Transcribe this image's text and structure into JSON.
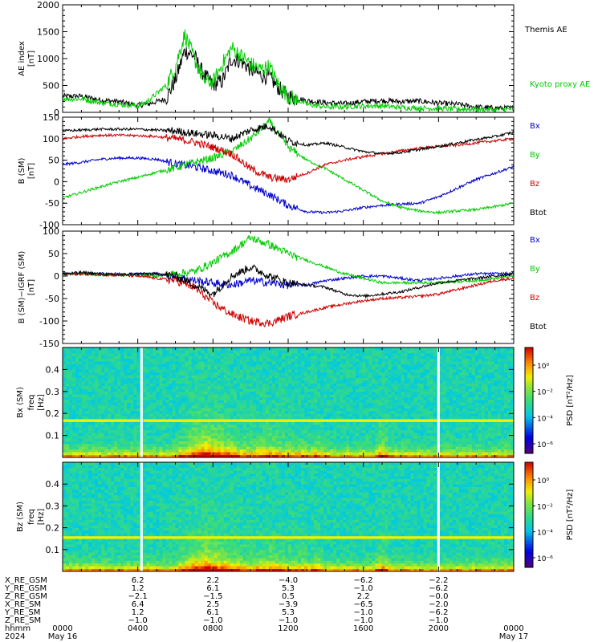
{
  "chart_data": [
    {
      "type": "line",
      "panel": "ae",
      "ylabel": "AE index",
      "yunit": "[nT]",
      "ylim": [
        0,
        2000
      ],
      "yticks": [
        0,
        500,
        1000,
        1500,
        2000
      ],
      "xlim_hours": [
        0,
        24
      ],
      "series": [
        {
          "name": "Themis AE",
          "color": "#000000",
          "x": [
            0,
            1,
            2,
            3,
            4,
            4.5,
            5,
            5.5,
            6,
            6.5,
            7,
            7.5,
            8,
            8.5,
            9,
            9.5,
            10,
            10.5,
            11,
            11.5,
            12,
            13,
            14,
            15,
            16,
            17,
            18,
            19,
            20,
            21,
            22,
            23,
            24
          ],
          "y": [
            300,
            300,
            230,
            200,
            130,
            150,
            200,
            250,
            600,
            1150,
            1050,
            700,
            520,
            580,
            1000,
            950,
            800,
            700,
            650,
            450,
            300,
            220,
            180,
            160,
            200,
            220,
            200,
            210,
            170,
            150,
            100,
            80,
            80
          ]
        },
        {
          "name": "Kyoto proxy AE",
          "label_lines": [
            "Kyoto",
            "proxy AE"
          ],
          "color": "#00cc00",
          "x": [
            0,
            1,
            2,
            3,
            4,
            4.5,
            5,
            5.5,
            6,
            6.5,
            7,
            7.5,
            8,
            8.5,
            9,
            9.5,
            10,
            10.5,
            11,
            11.5,
            12,
            13,
            14,
            15,
            16,
            17,
            18,
            19,
            20,
            21,
            22,
            23,
            24
          ],
          "y": [
            250,
            250,
            180,
            150,
            120,
            200,
            350,
            500,
            850,
            1450,
            1000,
            600,
            550,
            900,
            1200,
            1050,
            900,
            800,
            850,
            500,
            300,
            150,
            100,
            100,
            120,
            120,
            90,
            80,
            70,
            60,
            60,
            50,
            60
          ]
        }
      ]
    },
    {
      "type": "line",
      "panel": "bsm",
      "ylabel": "B (SM)",
      "yunit": "[nT]",
      "ylim": [
        -100,
        150
      ],
      "yticks": [
        -100,
        -50,
        0,
        50,
        100,
        150
      ],
      "xlim_hours": [
        0,
        24
      ],
      "series": [
        {
          "name": "Bx",
          "color": "#0000cc",
          "x": [
            0,
            1,
            2,
            3,
            4,
            5,
            6,
            7,
            8,
            9,
            10,
            11,
            12,
            13,
            14,
            15,
            16,
            17,
            18,
            19,
            20,
            21,
            22,
            23,
            24
          ],
          "y": [
            40,
            45,
            52,
            55,
            55,
            52,
            42,
            35,
            25,
            15,
            -10,
            -30,
            -55,
            -70,
            -72,
            -68,
            -60,
            -55,
            -52,
            -50,
            -35,
            -15,
            5,
            20,
            35
          ]
        },
        {
          "name": "By",
          "color": "#00cc00",
          "x": [
            0,
            1,
            2,
            3,
            4,
            5,
            6,
            7,
            8,
            9,
            10,
            11,
            12,
            13,
            14,
            15,
            16,
            17,
            18,
            19,
            20,
            21,
            22,
            23,
            24
          ],
          "y": [
            -38,
            -25,
            -12,
            0,
            10,
            22,
            32,
            45,
            55,
            70,
            100,
            140,
            80,
            50,
            30,
            5,
            -20,
            -45,
            -60,
            -68,
            -72,
            -68,
            -65,
            -58,
            -50
          ]
        },
        {
          "name": "Bz",
          "color": "#cc0000",
          "x": [
            0,
            1,
            2,
            3,
            4,
            5,
            6,
            7,
            8,
            9,
            10,
            11,
            12,
            13,
            14,
            15,
            16,
            17,
            18,
            19,
            20,
            21,
            22,
            23,
            24
          ],
          "y": [
            100,
            105,
            108,
            108,
            107,
            105,
            100,
            92,
            80,
            65,
            30,
            10,
            5,
            20,
            40,
            50,
            58,
            65,
            72,
            78,
            82,
            85,
            90,
            95,
            100
          ]
        },
        {
          "name": "Btot",
          "color": "#000000",
          "x": [
            0,
            1,
            2,
            3,
            4,
            5,
            6,
            7,
            8,
            9,
            10,
            11,
            12,
            13,
            14,
            15,
            16,
            17,
            18,
            19,
            20,
            21,
            22,
            23,
            24
          ],
          "y": [
            118,
            120,
            122,
            122,
            122,
            120,
            118,
            112,
            108,
            100,
            120,
            130,
            95,
            85,
            90,
            80,
            70,
            65,
            68,
            75,
            82,
            90,
            98,
            105,
            115
          ]
        }
      ]
    },
    {
      "type": "line",
      "panel": "bsm-igrf",
      "ylabel": "B (SM)−IGRF (SM)",
      "yunit": "[nT]",
      "ylim": [
        -150,
        100
      ],
      "yticks": [
        -150,
        -100,
        -50,
        0,
        50,
        100
      ],
      "xlim_hours": [
        0,
        24
      ],
      "series": [
        {
          "name": "Bx",
          "color": "#0000cc",
          "x": [
            0,
            1,
            2,
            3,
            4,
            5,
            6,
            7,
            8,
            9,
            10,
            11,
            12,
            13,
            14,
            15,
            16,
            17,
            18,
            19,
            20,
            21,
            22,
            23,
            24
          ],
          "y": [
            5,
            5,
            5,
            5,
            5,
            5,
            0,
            -10,
            -15,
            -20,
            -10,
            -15,
            -20,
            -20,
            -10,
            -5,
            0,
            0,
            -5,
            -10,
            -5,
            0,
            5,
            5,
            5
          ]
        },
        {
          "name": "By",
          "color": "#00cc00",
          "x": [
            0,
            1,
            2,
            3,
            4,
            5,
            6,
            7,
            8,
            9,
            10,
            11,
            12,
            13,
            14,
            15,
            16,
            17,
            18,
            19,
            20,
            21,
            22,
            23,
            24
          ],
          "y": [
            5,
            5,
            3,
            2,
            2,
            0,
            5,
            10,
            30,
            55,
            85,
            70,
            50,
            35,
            20,
            5,
            -5,
            -15,
            -15,
            -15,
            -15,
            -12,
            -10,
            -5,
            0
          ]
        },
        {
          "name": "Bz",
          "color": "#cc0000",
          "x": [
            0,
            1,
            2,
            3,
            4,
            5,
            6,
            7,
            8,
            9,
            10,
            11,
            12,
            13,
            14,
            15,
            16,
            17,
            18,
            19,
            20,
            21,
            22,
            23,
            24
          ],
          "y": [
            5,
            5,
            3,
            2,
            0,
            -5,
            -10,
            -25,
            -60,
            -85,
            -100,
            -105,
            -90,
            -80,
            -70,
            -62,
            -55,
            -50,
            -48,
            -45,
            -40,
            -30,
            -20,
            -10,
            -5
          ]
        },
        {
          "name": "Btot",
          "color": "#000000",
          "x": [
            0,
            1,
            2,
            3,
            4,
            5,
            6,
            7,
            8,
            9,
            10,
            11,
            12,
            13,
            14,
            15,
            16,
            17,
            18,
            19,
            20,
            21,
            22,
            23,
            24
          ],
          "y": [
            5,
            8,
            5,
            3,
            5,
            5,
            0,
            -20,
            -40,
            0,
            20,
            0,
            -15,
            -20,
            -25,
            -40,
            -45,
            -40,
            -35,
            -25,
            -15,
            -10,
            -5,
            0,
            5
          ]
        }
      ]
    },
    {
      "type": "heatmap",
      "panel": "bx-spec",
      "ylabel": "Bx (SM)",
      "yunit": "freq",
      "yunit2": "[Hz]",
      "ylim": [
        0,
        0.5
      ],
      "yticks": [
        0.1,
        0.2,
        0.3,
        0.4
      ],
      "colorbar_label": "PSD [nT²/Hz]",
      "colorbar_ticks": [
        "10⁰",
        "10⁻²",
        "10⁻⁴",
        "10⁻⁶"
      ],
      "data_gaps_hours": [
        4.2,
        20.0
      ],
      "line_freq_hz": 0.165
    },
    {
      "type": "heatmap",
      "panel": "bz-spec",
      "ylabel": "Bz (SM)",
      "yunit": "freq",
      "yunit2": "[Hz]",
      "ylim": [
        0,
        0.5
      ],
      "yticks": [
        0.1,
        0.2,
        0.3,
        0.4
      ],
      "colorbar_label": "PSD [nT²/Hz]",
      "colorbar_ticks": [
        "10⁰",
        "10⁻²",
        "10⁻⁴",
        "10⁻⁶"
      ],
      "data_gaps_hours": [
        4.2,
        20.0
      ],
      "line_freq_hz": 0.155
    }
  ],
  "ephemeris": {
    "rows": [
      {
        "label": "X_RE_GSM",
        "values": [
          "6.2",
          "2.2",
          "−4.0",
          "−6.2",
          "−2.2"
        ]
      },
      {
        "label": "Y_RE_GSM",
        "values": [
          "1.2",
          "6.1",
          "5.3",
          "−1.0",
          "−6.2"
        ]
      },
      {
        "label": "Z_RE_GSM",
        "values": [
          "−2.1",
          "−1.5",
          "0.5",
          "2.2",
          "−0.0"
        ]
      },
      {
        "label": "X_RE_SM",
        "values": [
          "6.4",
          "2.5",
          "−3.9",
          "−6.5",
          "−2.0"
        ]
      },
      {
        "label": "Y_RE_SM",
        "values": [
          "1.2",
          "6.1",
          "5.3",
          "−1.0",
          "−6.2"
        ]
      },
      {
        "label": "Z_RE_SM",
        "values": [
          "−1.0",
          "−1.0",
          "−1.0",
          "−1.0",
          "−1.0"
        ]
      }
    ],
    "value_hours": [
      4,
      8,
      12,
      16,
      20
    ],
    "time_row_label": "hhmm",
    "year_label": "2024",
    "time_ticks": [
      {
        "hour": 0,
        "label": "0000"
      },
      {
        "hour": 4,
        "label": "0400"
      },
      {
        "hour": 8,
        "label": "0800"
      },
      {
        "hour": 12,
        "label": "1200"
      },
      {
        "hour": 16,
        "label": "1600"
      },
      {
        "hour": 20,
        "label": "2000"
      },
      {
        "hour": 24,
        "label": "0000"
      }
    ],
    "date_start": "May 16",
    "date_end": "May 17"
  }
}
